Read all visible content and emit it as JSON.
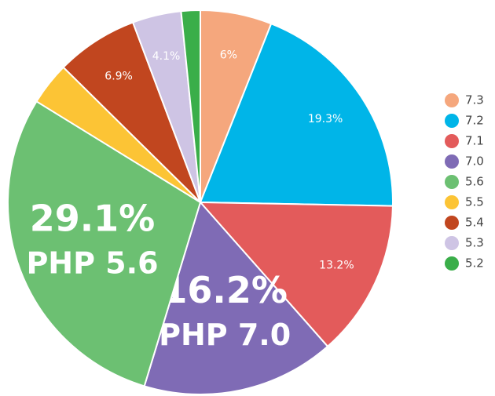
{
  "chart_data": {
    "type": "pie",
    "categories": [
      "7.3",
      "7.2",
      "7.1",
      "7.0",
      "5.6",
      "5.5",
      "5.4",
      "5.3",
      "5.2"
    ],
    "values": [
      6,
      19.3,
      13.2,
      16.2,
      29.1,
      3.6,
      6.9,
      4.1,
      1.6
    ],
    "value_labels": [
      "6%",
      "19.3%",
      "13.2%",
      "16.2%",
      "29.1%",
      null,
      "6.9%",
      "4.1%",
      null
    ],
    "slice_captions": [
      null,
      null,
      null,
      "PHP 7.0",
      "PHP 5.6",
      null,
      null,
      null,
      null
    ],
    "colors": [
      "#f5a77d",
      "#00b5e8",
      "#e35b5b",
      "#7f6bb5",
      "#6cc072",
      "#fcc435",
      "#c1461f",
      "#cec4e4",
      "#3aae49"
    ],
    "legend": "right"
  }
}
